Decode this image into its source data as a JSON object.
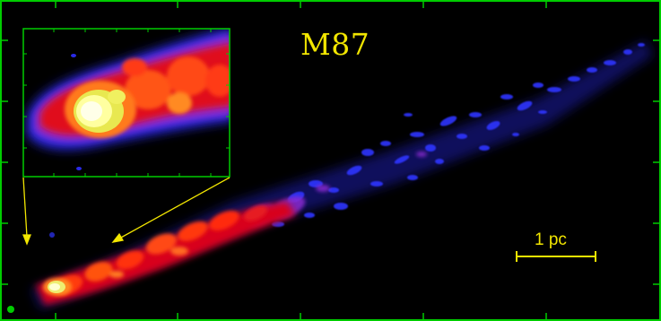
{
  "image": {
    "title": "M87",
    "scale_bar": {
      "label": "1 pc"
    },
    "frame_color": "#00cc00",
    "annotation_color": "#f2e600"
  }
}
